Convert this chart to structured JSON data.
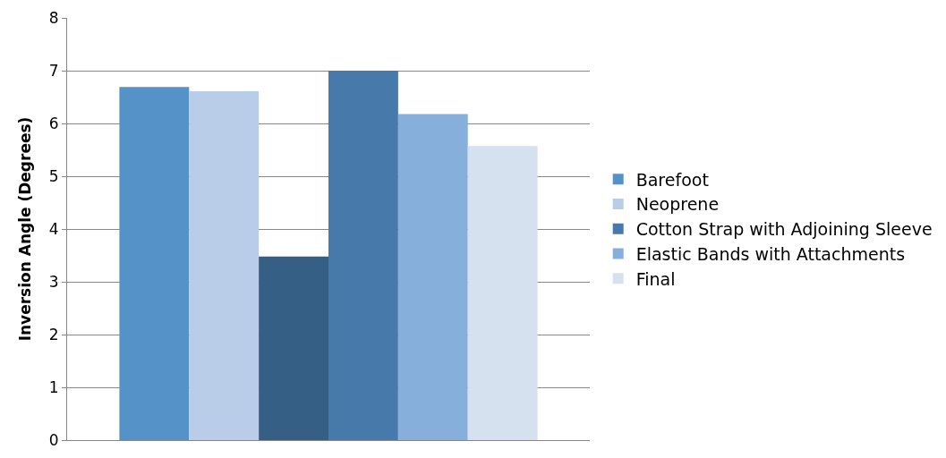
{
  "chart_data": {
    "type": "bar",
    "ylabel": "Inversion Angle (Degrees)",
    "categories": [
      null
    ],
    "series": [
      {
        "name": "Barefoot",
        "color": "#5592c8",
        "values": [
          6.69
        ]
      },
      {
        "name": "Neoprene",
        "color": "#b9cde8",
        "values": [
          6.61
        ]
      },
      {
        "color": "#365f86",
        "values": [
          3.48
        ]
      },
      {
        "name": "Cotton Strap with Adjoining Sleeve",
        "color": "#4779aa",
        "values": [
          7.0
        ]
      },
      {
        "name": "Elastic Bands with Attachments",
        "color": "#86afdc",
        "values": [
          6.18
        ]
      },
      {
        "name": "Final",
        "color": "#d6e1ef",
        "values": [
          5.57
        ]
      }
    ],
    "ylim": [
      0,
      8
    ],
    "yticks": [
      0,
      1,
      2,
      3,
      4,
      5,
      6,
      7,
      8
    ],
    "grid": "y",
    "legend": "right"
  }
}
